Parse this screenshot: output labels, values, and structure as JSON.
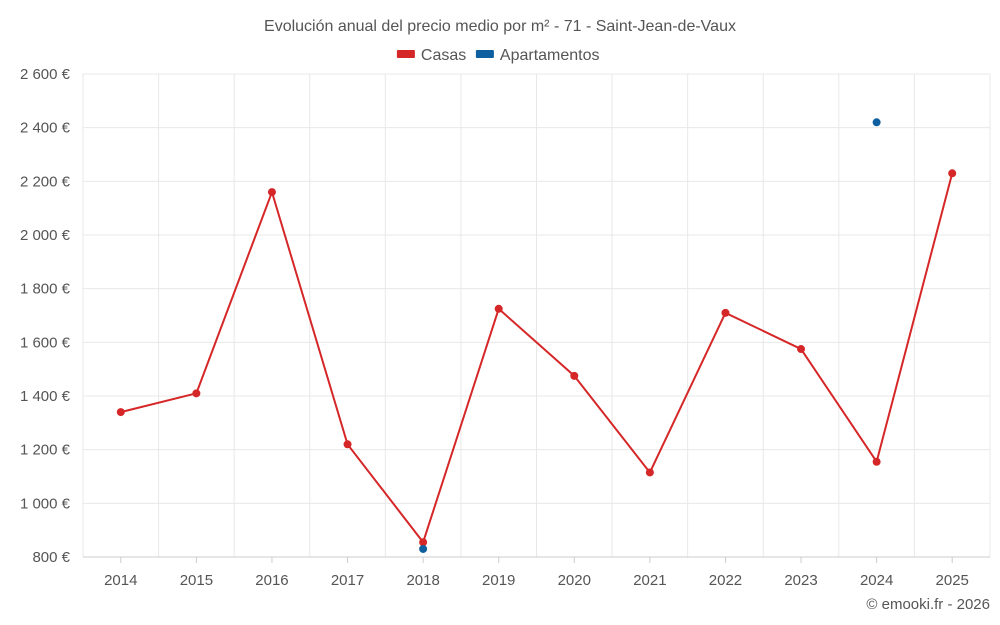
{
  "chart_data": {
    "type": "line",
    "title": "Evolución anual del precio medio por m² - 71 - Saint-Jean-de-Vaux",
    "categories": [
      "2014",
      "2015",
      "2016",
      "2017",
      "2018",
      "2019",
      "2020",
      "2021",
      "2022",
      "2023",
      "2024",
      "2025"
    ],
    "y_ticks": [
      800,
      1000,
      1200,
      1400,
      1600,
      1800,
      2000,
      2200,
      2400,
      2600
    ],
    "y_tick_labels": [
      "800 €",
      "1 000 €",
      "1 200 €",
      "1 400 €",
      "1 600 €",
      "1 800 €",
      "2 000 €",
      "2 200 €",
      "2 400 €",
      "2 600 €"
    ],
    "ylim": [
      800,
      2600
    ],
    "grid": true,
    "legend_position": "top-center",
    "series": [
      {
        "name": "Casas",
        "color": "#d62728",
        "values": [
          1340,
          1410,
          2160,
          1220,
          855,
          1725,
          1475,
          1115,
          1710,
          1575,
          1155,
          2230
        ]
      },
      {
        "name": "Apartamentos",
        "color": "#0e5fa0",
        "values": [
          null,
          null,
          null,
          null,
          830,
          null,
          null,
          null,
          null,
          null,
          2420,
          null
        ]
      }
    ]
  },
  "credit": "© emooki.fr - 2026"
}
